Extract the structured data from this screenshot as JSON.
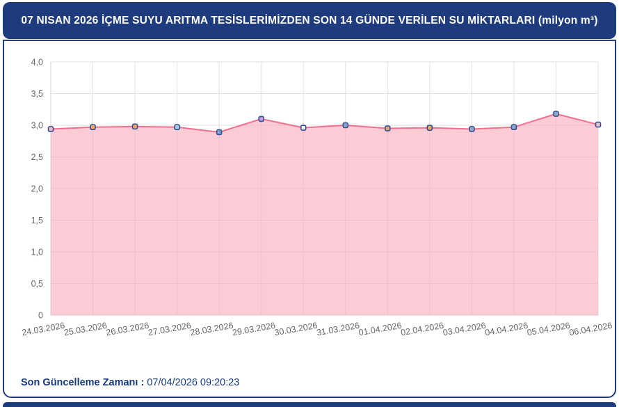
{
  "header": {
    "title": "07 NISAN 2026 İÇME SUYU ARITMA TESİSLERİMİZDEN SON 14 GÜNDE VERİLEN SU MİKTARLARI (milyon m³)",
    "bg_color": "#1e3c7d",
    "text_color": "#ffffff"
  },
  "footer": {
    "label": "Son Güncelleme Zamanı",
    "separator": " : ",
    "value": "07/04/2026 09:20:23",
    "text_color": "#173a7c"
  },
  "chart_data": {
    "type": "area",
    "title": "07 NISAN 2026 İÇME SUYU ARITMA TESİSLERİMİZDEN SON 14 GÜNDE VERİLEN SU MİKTARLARI (milyon m³)",
    "unit": "milyon m³",
    "categories": [
      "24.03.2026",
      "25.03.2026",
      "26.03.2026",
      "27.03.2026",
      "28.03.2026",
      "29.03.2026",
      "30.03.2026",
      "31.03.2026",
      "01.04.2026",
      "02.04.2026",
      "03.04.2026",
      "04.04.2026",
      "05.04.2026",
      "06.04.2026"
    ],
    "values": [
      2.94,
      2.97,
      2.98,
      2.97,
      2.89,
      3.1,
      2.96,
      3.0,
      2.95,
      2.96,
      2.94,
      2.97,
      3.18,
      3.01
    ],
    "xlabel": "",
    "ylabel": "",
    "ylim": [
      0,
      4
    ],
    "ytick_step": 0.5,
    "ytick_labels": [
      "4,0",
      "3,5",
      "3,0",
      "2,5",
      "2,0",
      "1,5",
      "1,0",
      "0,5",
      "0"
    ],
    "grid": true,
    "legend": false,
    "line_color": "#f1708e",
    "area_color": "#f9a8bb",
    "area_opacity": 0.6,
    "grid_color": "#e2e2e2",
    "axis_color": "#d4d4d4",
    "tick_color": "#666666",
    "marker_border_color": "#35508f",
    "marker_colors": [
      "#f4b9c8",
      "#f3a963",
      "#f3a963",
      "#a6cede",
      "#7f9fd8",
      "#c59ce0",
      "#f5eef3",
      "#8ba6cb",
      "#d8a96e",
      "#eda661",
      "#95aac6",
      "#90a6c6",
      "#93a5cb",
      "#f3c3d0"
    ]
  }
}
